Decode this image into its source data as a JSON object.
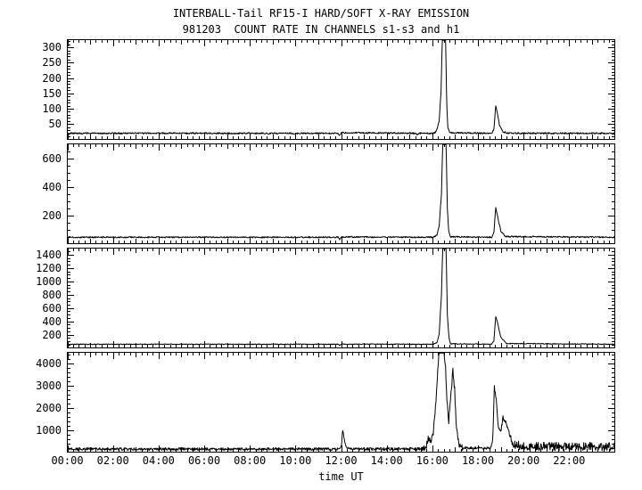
{
  "title": "INTERBALL-Tail RF15-I HARD/SOFT X-RAY EMISSION",
  "subtitle": "981203  COUNT RATE IN CHANNELS s1-s3 and h1",
  "xlabel": "time UT",
  "chart_data": {
    "type": "line",
    "x_unit": "hours UT",
    "x_range": [
      0,
      24
    ],
    "x_major_step": 2,
    "x_tick_labels": [
      "00:00",
      "02:00",
      "04:00",
      "06:00",
      "08:00",
      "10:00",
      "12:00",
      "14:00",
      "16:00",
      "18:00",
      "20:00",
      "22:00"
    ],
    "line_color": "#000000",
    "panels": [
      {
        "channel": "s1",
        "ylim": [
          0,
          325
        ],
        "y_major_ticks": [
          50,
          100,
          150,
          200,
          250,
          300
        ],
        "y_minor_step": 10,
        "series_breakpoints": [
          [
            0,
            20
          ],
          [
            11.88,
            20
          ],
          [
            11.93,
            13
          ],
          [
            12.0,
            22
          ],
          [
            15.28,
            20
          ],
          [
            15.34,
            15
          ],
          [
            15.45,
            20
          ],
          [
            16.05,
            20
          ],
          [
            16.18,
            26
          ],
          [
            16.3,
            60
          ],
          [
            16.38,
            150
          ],
          [
            16.44,
            340
          ],
          [
            16.58,
            340
          ],
          [
            16.63,
            120
          ],
          [
            16.68,
            40
          ],
          [
            16.76,
            22
          ],
          [
            18.6,
            20
          ],
          [
            18.7,
            32
          ],
          [
            18.78,
            108
          ],
          [
            18.84,
            92
          ],
          [
            18.95,
            45
          ],
          [
            19.1,
            25
          ],
          [
            19.3,
            20
          ],
          [
            24,
            20
          ]
        ],
        "noise_amp_breakpoints": [
          [
            0,
            5
          ],
          [
            24,
            5
          ]
        ]
      },
      {
        "channel": "s2",
        "ylim": [
          0,
          700
        ],
        "y_major_ticks": [
          200,
          400,
          600
        ],
        "y_minor_step": 50,
        "series_breakpoints": [
          [
            0,
            45
          ],
          [
            11.88,
            45
          ],
          [
            11.94,
            30
          ],
          [
            12.0,
            47
          ],
          [
            16.05,
            45
          ],
          [
            16.2,
            60
          ],
          [
            16.3,
            120
          ],
          [
            16.4,
            350
          ],
          [
            16.46,
            730
          ],
          [
            16.6,
            730
          ],
          [
            16.66,
            250
          ],
          [
            16.72,
            85
          ],
          [
            16.8,
            48
          ],
          [
            18.6,
            45
          ],
          [
            18.7,
            75
          ],
          [
            18.78,
            255
          ],
          [
            18.85,
            200
          ],
          [
            19.0,
            90
          ],
          [
            19.2,
            50
          ],
          [
            24,
            45
          ]
        ],
        "noise_amp_breakpoints": [
          [
            0,
            9
          ],
          [
            24,
            9
          ]
        ]
      },
      {
        "channel": "s3",
        "ylim": [
          0,
          1500
        ],
        "y_major_ticks": [
          200,
          400,
          600,
          800,
          1000,
          1200,
          1400
        ],
        "y_minor_step": 50,
        "series_breakpoints": [
          [
            0,
            55
          ],
          [
            11.88,
            55
          ],
          [
            11.94,
            35
          ],
          [
            12.0,
            57
          ],
          [
            16.05,
            55
          ],
          [
            16.2,
            78
          ],
          [
            16.3,
            200
          ],
          [
            16.4,
            800
          ],
          [
            16.46,
            1560
          ],
          [
            16.6,
            1560
          ],
          [
            16.66,
            500
          ],
          [
            16.73,
            150
          ],
          [
            16.8,
            62
          ],
          [
            18.6,
            55
          ],
          [
            18.7,
            105
          ],
          [
            18.78,
            470
          ],
          [
            18.86,
            380
          ],
          [
            19.0,
            160
          ],
          [
            19.25,
            65
          ],
          [
            24,
            55
          ]
        ],
        "noise_amp_breakpoints": [
          [
            0,
            11
          ],
          [
            24,
            11
          ]
        ]
      },
      {
        "channel": "h1",
        "ylim": [
          0,
          4500
        ],
        "y_major_ticks": [
          1000,
          2000,
          3000,
          4000
        ],
        "y_minor_step": 200,
        "series_breakpoints": [
          [
            0,
            140
          ],
          [
            11.95,
            140
          ],
          [
            12.02,
            300
          ],
          [
            12.07,
            1050
          ],
          [
            12.15,
            500
          ],
          [
            12.25,
            180
          ],
          [
            12.4,
            140
          ],
          [
            15.55,
            150
          ],
          [
            15.72,
            250
          ],
          [
            15.83,
            620
          ],
          [
            15.93,
            430
          ],
          [
            16.05,
            900
          ],
          [
            16.15,
            2200
          ],
          [
            16.22,
            3400
          ],
          [
            16.3,
            4600
          ],
          [
            16.5,
            4600
          ],
          [
            16.58,
            3800
          ],
          [
            16.65,
            2200
          ],
          [
            16.72,
            1400
          ],
          [
            16.82,
            2600
          ],
          [
            16.9,
            3650
          ],
          [
            16.98,
            2800
          ],
          [
            17.05,
            1200
          ],
          [
            17.15,
            420
          ],
          [
            17.25,
            200
          ],
          [
            18.55,
            170
          ],
          [
            18.65,
            520
          ],
          [
            18.72,
            2950
          ],
          [
            18.8,
            2380
          ],
          [
            18.88,
            1200
          ],
          [
            19.0,
            920
          ],
          [
            19.1,
            1560
          ],
          [
            19.25,
            1300
          ],
          [
            19.4,
            720
          ],
          [
            19.55,
            360
          ],
          [
            20.0,
            260
          ],
          [
            24,
            250
          ]
        ],
        "noise_amp_breakpoints": [
          [
            0,
            120
          ],
          [
            11.8,
            120
          ],
          [
            12.0,
            60
          ],
          [
            12.45,
            120
          ],
          [
            15.5,
            150
          ],
          [
            15.7,
            300
          ],
          [
            17.3,
            300
          ],
          [
            17.45,
            110
          ],
          [
            18.5,
            100
          ],
          [
            19.4,
            250
          ],
          [
            19.6,
            380
          ],
          [
            24,
            380
          ]
        ]
      }
    ]
  }
}
